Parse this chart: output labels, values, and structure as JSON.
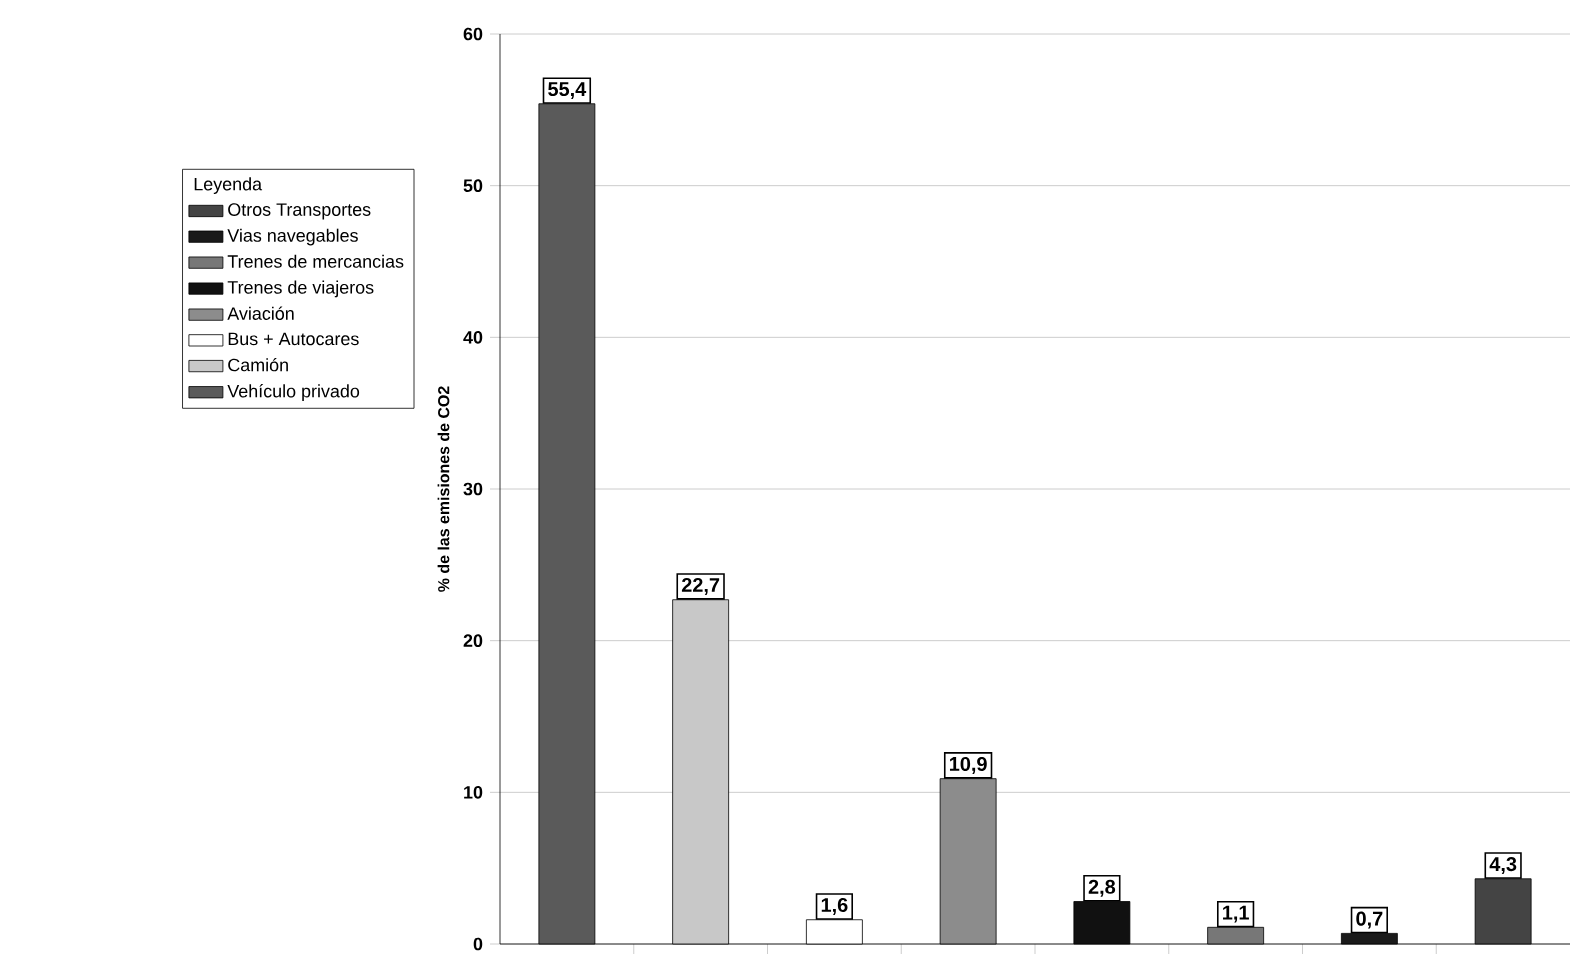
{
  "chart_data": {
    "type": "bar",
    "ylabel": "% de las emisiones de CO2",
    "legend_title": "Leyenda",
    "categories": [
      null,
      null,
      null,
      null,
      null,
      null,
      null,
      null
    ],
    "series": [
      {
        "name": "Otros Transportes",
        "color": "#444444",
        "values": [
          null,
          null,
          null,
          null,
          null,
          null,
          null,
          4.3
        ],
        "value_labels": [
          null,
          null,
          null,
          null,
          null,
          null,
          null,
          "4,3"
        ]
      },
      {
        "name": "Vias navegables",
        "color": "#1a1a1a",
        "values": [
          null,
          null,
          null,
          null,
          null,
          null,
          0.7,
          null
        ],
        "value_labels": [
          null,
          null,
          null,
          null,
          null,
          null,
          "0,7",
          null
        ]
      },
      {
        "name": "Trenes de mercancias",
        "color": "#777777",
        "values": [
          null,
          null,
          null,
          null,
          null,
          1.1,
          null,
          null
        ],
        "value_labels": [
          null,
          null,
          null,
          null,
          null,
          "1,1",
          null,
          null
        ]
      },
      {
        "name": "Trenes de viajeros",
        "color": "#111111",
        "values": [
          null,
          null,
          null,
          null,
          2.8,
          null,
          null,
          null
        ],
        "value_labels": [
          null,
          null,
          null,
          null,
          "2,8",
          null,
          null,
          null
        ]
      },
      {
        "name": "Aviación",
        "color": "#8c8c8c",
        "values": [
          null,
          null,
          null,
          10.9,
          null,
          null,
          null,
          null
        ],
        "value_labels": [
          null,
          null,
          null,
          "10,9",
          null,
          null,
          null,
          null
        ]
      },
      {
        "name": "Bus + Autocares",
        "color": "#ffffff",
        "values": [
          null,
          null,
          1.6,
          null,
          null,
          null,
          null,
          null
        ],
        "value_labels": [
          null,
          null,
          "1,6",
          null,
          null,
          null,
          null,
          null
        ]
      },
      {
        "name": "Camión",
        "color": "#c8c8c8",
        "values": [
          null,
          22.7,
          null,
          null,
          null,
          null,
          null,
          null
        ],
        "value_labels": [
          null,
          "22,7",
          null,
          null,
          null,
          null,
          null,
          null
        ]
      },
      {
        "name": "Vehículo privado",
        "color": "#5a5a5a",
        "values": [
          55.4,
          null,
          null,
          null,
          null,
          null,
          null,
          null
        ],
        "value_labels": [
          "55,4",
          null,
          null,
          null,
          null,
          null,
          null,
          null
        ]
      }
    ],
    "ylim": [
      0,
      60
    ],
    "yticks": [
      0,
      10,
      20,
      30,
      40,
      50,
      60
    ],
    "grid": "y",
    "legend": "left",
    "tick_labels": "y"
  }
}
